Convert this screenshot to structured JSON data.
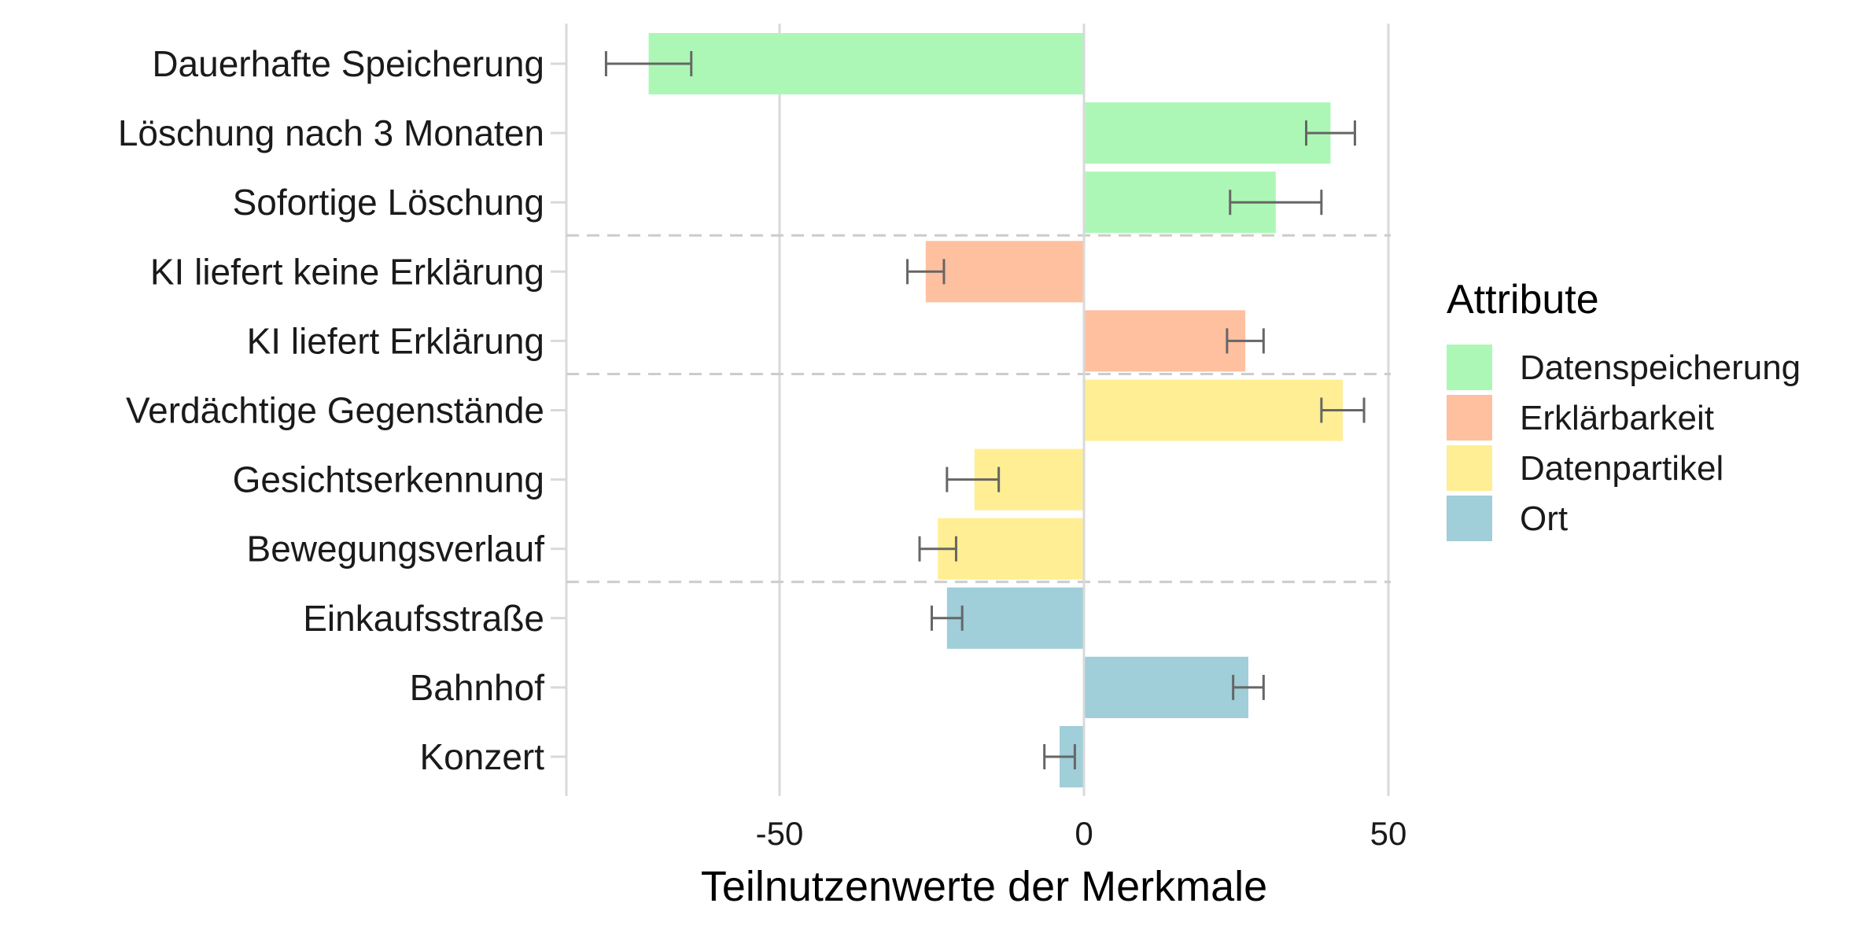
{
  "chart_data": {
    "type": "bar",
    "orientation": "horizontal",
    "xlabel": "Teilnutzenwerte der Merkmale",
    "xlim": [
      -85,
      50
    ],
    "xticks": [
      -50,
      0,
      50
    ],
    "grid": "vertical-major",
    "legend": {
      "title": "Attribute",
      "position": "right",
      "entries": [
        {
          "label": "Datenspeicherung",
          "color": "#adf7b6"
        },
        {
          "label": "Erklärbarkeit",
          "color": "#ffc09f"
        },
        {
          "label": "Datenpartikel",
          "color": "#ffee93"
        },
        {
          "label": "Ort",
          "color": "#a0ced9"
        }
      ]
    },
    "bars": [
      {
        "category": "Dauerhafte Speicherung",
        "group": "Datenspeicherung",
        "value": -71.5,
        "err_low": -78.5,
        "err_high": -64.5
      },
      {
        "category": "Löschung nach 3 Monaten",
        "group": "Datenspeicherung",
        "value": 40.5,
        "err_low": 36.5,
        "err_high": 44.5
      },
      {
        "category": "Sofortige Löschung",
        "group": "Datenspeicherung",
        "value": 31.5,
        "err_low": 24,
        "err_high": 39
      },
      {
        "category": "KI liefert keine Erklärung",
        "group": "Erklärbarkeit",
        "value": -26,
        "err_low": -29,
        "err_high": -23
      },
      {
        "category": "KI liefert Erklärung",
        "group": "Erklärbarkeit",
        "value": 26.5,
        "err_low": 23.5,
        "err_high": 29.5
      },
      {
        "category": "Verdächtige Gegenstände",
        "group": "Datenpartikel",
        "value": 42.5,
        "err_low": 39,
        "err_high": 46
      },
      {
        "category": "Gesichtserkennung",
        "group": "Datenpartikel",
        "value": -18,
        "err_low": -22.5,
        "err_high": -14
      },
      {
        "category": "Bewegungsverlauf",
        "group": "Datenpartikel",
        "value": -24,
        "err_low": -27,
        "err_high": -21
      },
      {
        "category": "Einkaufsstraße",
        "group": "Ort",
        "value": -22.5,
        "err_low": -25,
        "err_high": -20
      },
      {
        "category": "Bahnhof",
        "group": "Ort",
        "value": 27,
        "err_low": 24.5,
        "err_high": 29.5
      },
      {
        "category": "Konzert",
        "group": "Ort",
        "value": -4,
        "err_low": -6.5,
        "err_high": -1.5
      }
    ]
  }
}
